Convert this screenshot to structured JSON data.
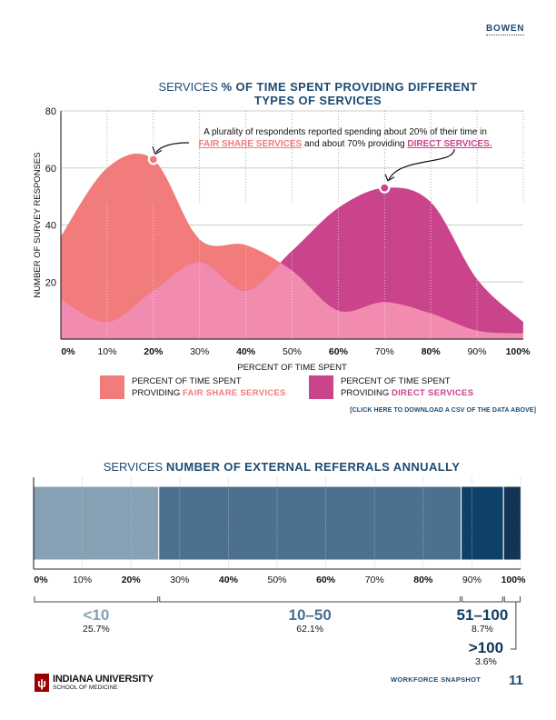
{
  "header": {
    "section_tag": "BOWEN"
  },
  "chart1": {
    "title_light": "SERVICES",
    "title_bold_line1": "% OF TIME SPENT PROVIDING DIFFERENT",
    "title_bold_line2": "TYPES OF SERVICES",
    "annotation": {
      "line1": "A plurality of respondents reported spending about 20% of their time in",
      "fair_share_text": "FAIR SHARE SERVICES",
      "middle_text": " and about 70% providing ",
      "direct_text": "DIRECT SERVICES."
    },
    "legend": [
      {
        "line1": "PERCENT OF TIME SPENT",
        "line2_prefix": "PROVIDING ",
        "line2_bold": "FAIR SHARE SERVICES",
        "color": "#f27b7b"
      },
      {
        "line1": "PERCENT OF TIME SPENT",
        "line2_prefix": "PROVIDING ",
        "line2_bold": "DIRECT SERVICES",
        "color": "#c9448a"
      }
    ],
    "csv_link": "[CLICK HERE TO DOWNLOAD A CSV OF THE DATA ABOVE]"
  },
  "chart2": {
    "title_light": "SERVICES",
    "title_bold": "NUMBER OF EXTERNAL REFERRALS ANNUALLY"
  },
  "chart_data": [
    {
      "type": "area",
      "title": "SERVICES % OF TIME SPENT PROVIDING DIFFERENT TYPES OF SERVICES",
      "xlabel": "PERCENT OF TIME SPENT",
      "ylabel": "NUMBER OF SURVEY RESPONSES",
      "x": [
        0,
        10,
        20,
        30,
        40,
        50,
        60,
        70,
        80,
        90,
        100
      ],
      "x_tick_labels": [
        "0%",
        "10%",
        "20%",
        "30%",
        "40%",
        "50%",
        "60%",
        "70%",
        "80%",
        "90%",
        "100%"
      ],
      "y_ticks": [
        20,
        40,
        60,
        80
      ],
      "ylim": [
        0,
        80
      ],
      "xlim": [
        0,
        100
      ],
      "grid": true,
      "series": [
        {
          "name": "Percent of time spent providing Fair Share Services",
          "color": "#f27b7b",
          "values": [
            36,
            60,
            63,
            35,
            33,
            24,
            10,
            13,
            9,
            3,
            2
          ]
        },
        {
          "name": "Percent of time spent providing Direct Services",
          "color": "#c9448a",
          "values": [
            14,
            6,
            17,
            27,
            17,
            31,
            46,
            53,
            48,
            21,
            6
          ]
        }
      ],
      "overlap_color": "#f28bb0",
      "highlights": [
        {
          "series": 0,
          "x": 20,
          "y": 63
        },
        {
          "series": 1,
          "x": 70,
          "y": 53
        }
      ],
      "legend_position": "bottom"
    },
    {
      "type": "bar",
      "orientation": "horizontal-stacked",
      "title": "SERVICES NUMBER OF EXTERNAL REFERRALS ANNUALLY",
      "x_tick_labels": [
        "0%",
        "10%",
        "20%",
        "30%",
        "40%",
        "50%",
        "60%",
        "70%",
        "80%",
        "90%",
        "100%"
      ],
      "xlim": [
        0,
        100
      ],
      "categories": [
        "<10",
        "10–50",
        "51–100",
        ">100"
      ],
      "values": [
        25.7,
        62.1,
        8.7,
        3.6
      ],
      "value_labels": [
        "25.7%",
        "62.1%",
        "8.7%",
        "3.6%"
      ],
      "colors": [
        "#86a0b4",
        "#4b7090",
        "#0f4068",
        "#123455"
      ]
    }
  ],
  "footer": {
    "logo_mark": "ψ",
    "university": "INDIANA UNIVERSITY",
    "school": "SCHOOL OF MEDICINE",
    "publication": "WORKFORCE SNAPSHOT",
    "page_number": "11"
  }
}
